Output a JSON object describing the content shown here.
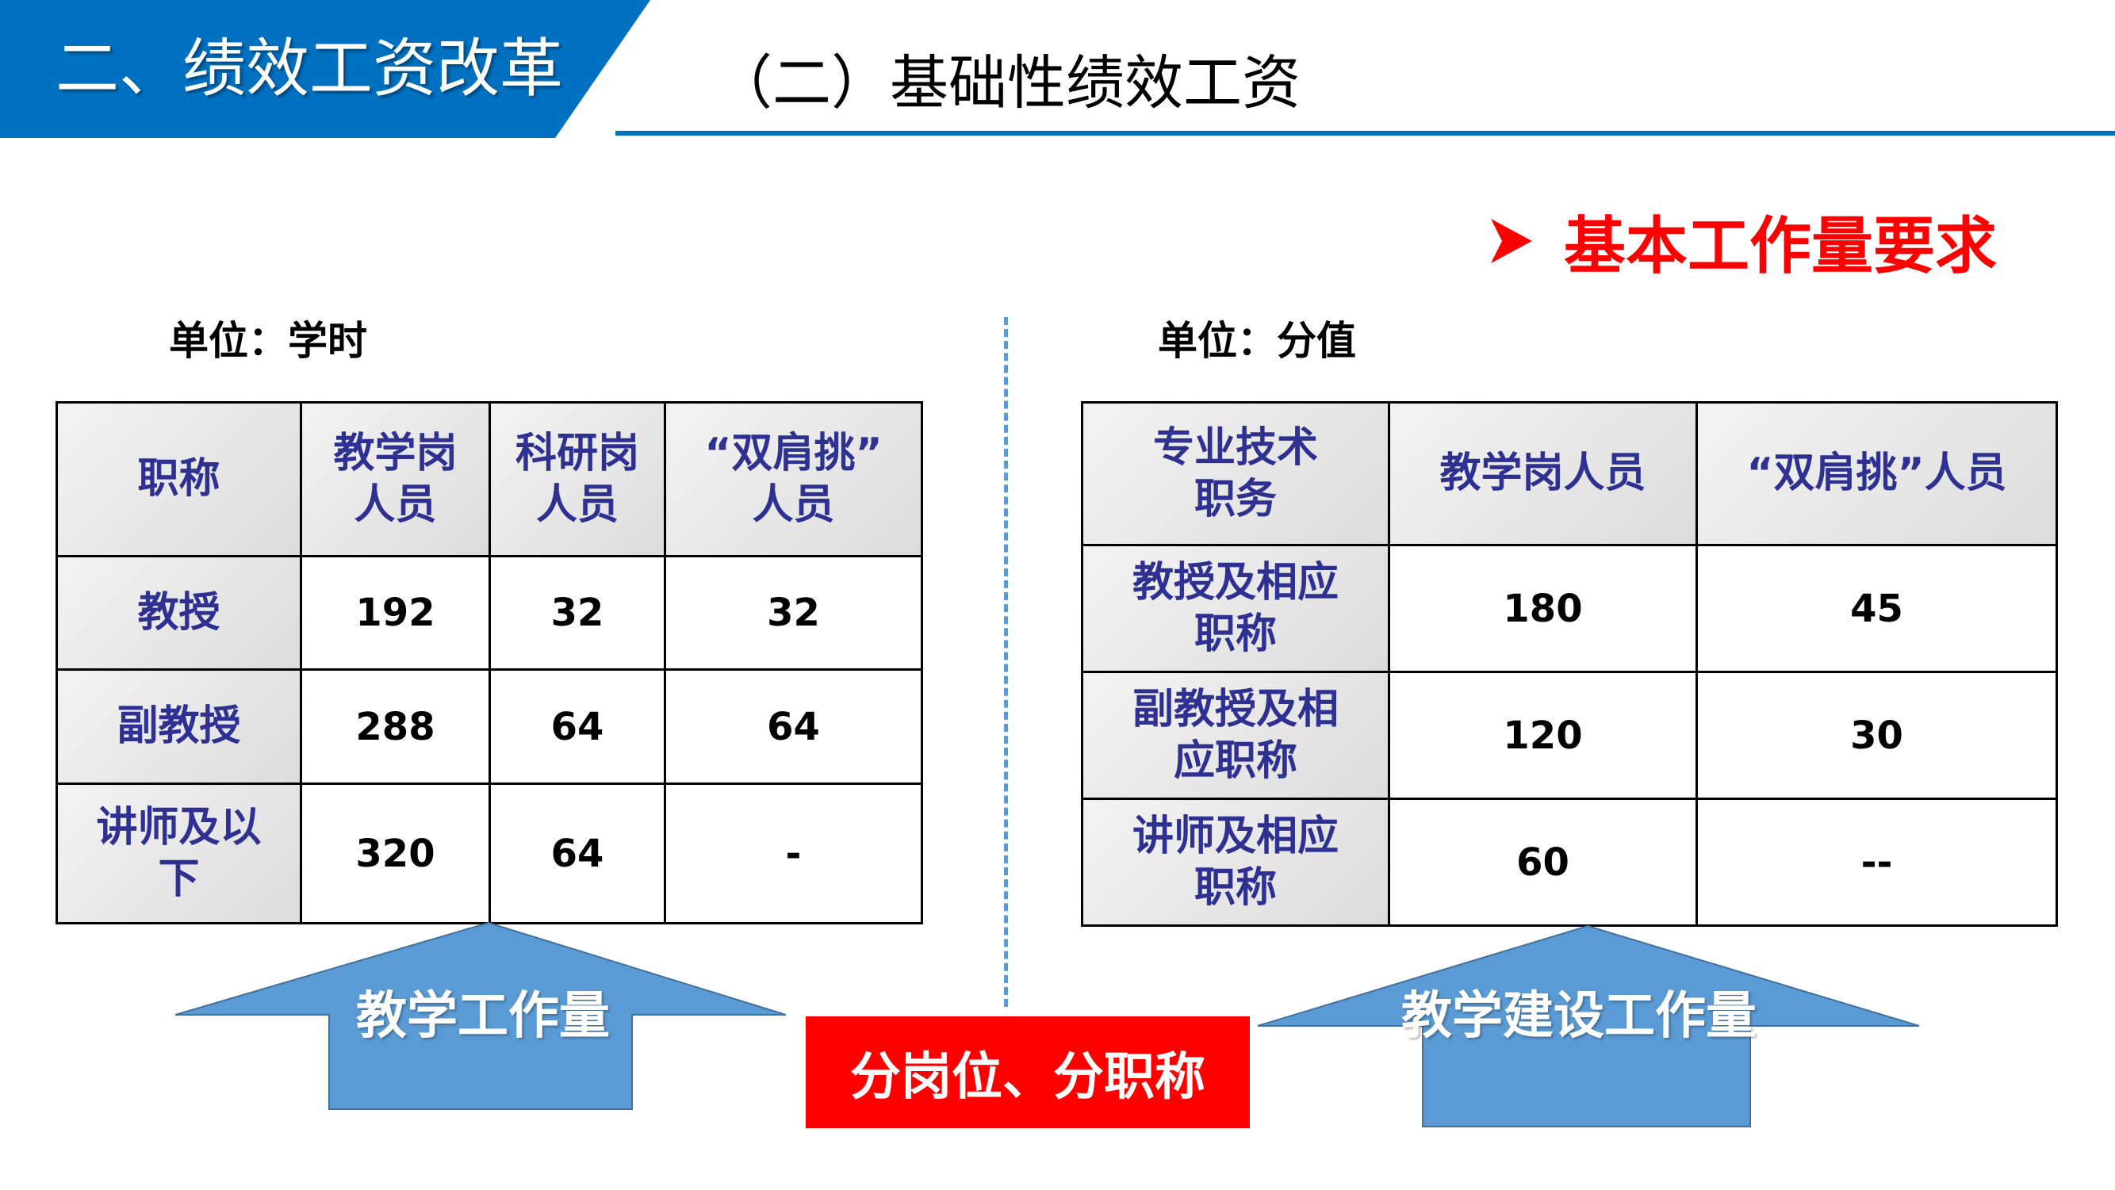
{
  "header": {
    "section_title": "二、绩效工资改革",
    "subtitle": "（二）基础性绩效工资"
  },
  "requirement": {
    "icon": "arrowhead-bullet-icon",
    "text": "基本工作量要求"
  },
  "colors": {
    "brand_blue": "#0070C0",
    "red": "#FF0000",
    "arrow_blue": "#5B9BD5",
    "header_text": "#2E3192"
  },
  "left": {
    "unit": "单位：学时",
    "headers": [
      "职称",
      "教学岗\n人员",
      "科研岗\n人员",
      "“双肩挑”\n人员"
    ],
    "rows": [
      [
        "教授",
        "192",
        "32",
        "32"
      ],
      [
        "副教授",
        "288",
        "64",
        "64"
      ],
      [
        "讲师及以\n下",
        "320",
        "64",
        "-"
      ]
    ],
    "arrow_label": "教学工作量"
  },
  "right": {
    "unit": "单位：分值",
    "headers": [
      "专业技术\n职务",
      "教学岗人员",
      "“双肩挑”人员"
    ],
    "rows": [
      [
        "教授及相应\n职称",
        "180",
        "45"
      ],
      [
        "副教授及相\n应职称",
        "120",
        "30"
      ],
      [
        "讲师及相应\n职称",
        "60",
        "--"
      ]
    ],
    "arrow_label": "教学建设工作量"
  },
  "center_label": "分岗位、分职称"
}
